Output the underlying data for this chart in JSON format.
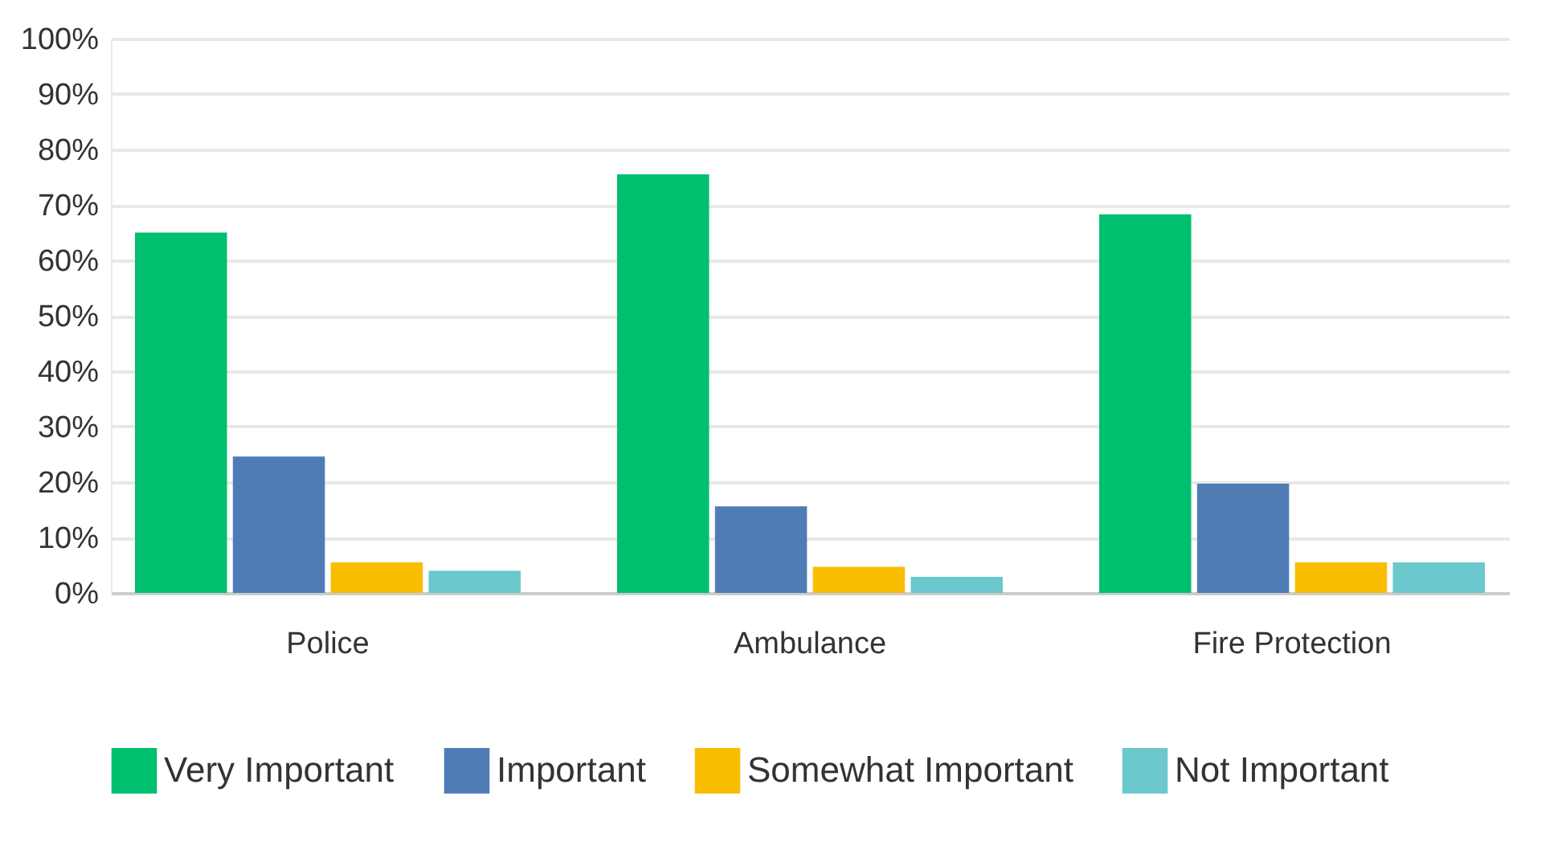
{
  "chart_data": {
    "type": "bar",
    "categories": [
      "Police",
      "Ambulance",
      "Fire Protection"
    ],
    "series": [
      {
        "name": "Very Important",
        "color": "#00bf6f",
        "values": [
          65,
          75.5,
          68.3
        ]
      },
      {
        "name": "Important",
        "color": "#507cb6",
        "values": [
          24.6,
          15.6,
          19.7
        ]
      },
      {
        "name": "Somewhat Important",
        "color": "#f9be00",
        "values": [
          5.5,
          4.7,
          5.5
        ]
      },
      {
        "name": "Not Important",
        "color": "#6bc8cd",
        "values": [
          4,
          2.9,
          5.5
        ]
      }
    ],
    "ylim": [
      0,
      100
    ],
    "yticks": [
      {
        "value": 0,
        "label": "0%"
      },
      {
        "value": 10,
        "label": "10%"
      },
      {
        "value": 20,
        "label": "20%"
      },
      {
        "value": 30,
        "label": "30%"
      },
      {
        "value": 40,
        "label": "40%"
      },
      {
        "value": 50,
        "label": "50%"
      },
      {
        "value": 60,
        "label": "60%"
      },
      {
        "value": 70,
        "label": "70%"
      },
      {
        "value": 80,
        "label": "80%"
      },
      {
        "value": 90,
        "label": "90%"
      },
      {
        "value": 100,
        "label": "100%"
      }
    ],
    "grid": "y",
    "legend": "bottom"
  }
}
